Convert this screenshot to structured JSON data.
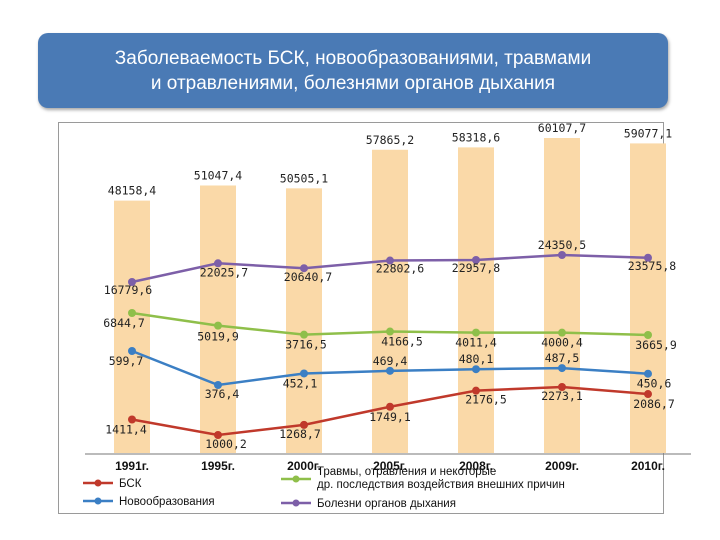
{
  "slide": {
    "title": "Заболеваемость  БСК, новообразованиями, травмами\nи отравлениями, болезнями органов дыхания"
  },
  "colors": {
    "title_bg": "#4a7ab5",
    "bar": "#fad9a8",
    "bsk": "#c0392b",
    "neoplasms": "#3b7fc4",
    "injuries": "#8fbf4a",
    "respiratory": "#7d5fa8"
  },
  "chart_data": {
    "type": "bar",
    "categories": [
      "1991г.",
      "1995г.",
      "2000г.",
      "2005г.",
      "2008г.",
      "2009г.",
      "2010г."
    ],
    "bars": {
      "values": [
        48158.4,
        51047.4,
        50505.1,
        57865.2,
        58318.6,
        60107.7,
        59077.1
      ],
      "labels": [
        "48158,4",
        "51047,4",
        "50505,1",
        "57865,2",
        "58318,6",
        "60107,7",
        "59077,1"
      ]
    },
    "series": [
      {
        "name": "Болезни органов дыхания",
        "type": "line",
        "values": [
          16779.6,
          22025.7,
          20640.7,
          22802.6,
          22957.8,
          24350.5,
          23575.8
        ],
        "labels": [
          "16779,6",
          "22025,7",
          "20640,7",
          "22802,6",
          "22957,8",
          "24350,5",
          "23575,8"
        ]
      },
      {
        "name": "Травмы, отравления и некоторые др. последствия воздействия внешних причин",
        "type": "line",
        "values": [
          6844.7,
          5019.9,
          3716.5,
          4166.5,
          4011.4,
          4000.4,
          3665.9
        ],
        "labels": [
          "6844,7",
          "5019,9",
          "3716,5",
          "4166,5",
          "4011,4",
          "4000,4",
          "3665,9"
        ]
      },
      {
        "name": "Новообразования",
        "type": "line",
        "values": [
          599.7,
          376.4,
          452.1,
          469.4,
          480.1,
          487.5,
          450.6
        ],
        "labels": [
          "599,7",
          "376,4",
          "452,1",
          "469,4",
          "480,1",
          "487,5",
          "450,6"
        ]
      },
      {
        "name": "БСК",
        "type": "line",
        "values": [
          1411.4,
          1000.2,
          1268.7,
          1749.1,
          2176.5,
          2273.1,
          2086.7
        ],
        "labels": [
          "1411,4",
          "1000,2",
          "1268,7",
          "1749,1",
          "2176,5",
          "2273,1",
          "2086,7"
        ]
      }
    ],
    "legend": {
      "position": "bottom",
      "items": [
        {
          "name": "БСК",
          "color": "#c0392b"
        },
        {
          "name": "Травмы, отравления и некоторые др. последствия воздействия внешних причин",
          "color": "#8fbf4a"
        },
        {
          "name": "Новообразования",
          "color": "#3b7fc4"
        },
        {
          "name": "Болезни органов дыхания",
          "color": "#7d5fa8"
        }
      ]
    },
    "grid": false
  }
}
